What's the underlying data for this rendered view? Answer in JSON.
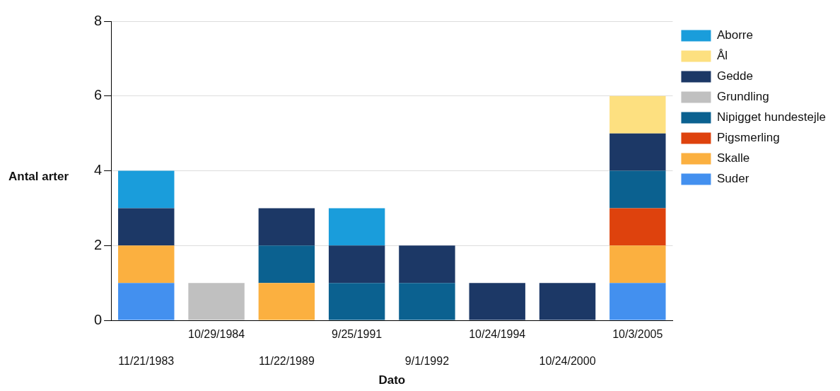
{
  "chart_data": {
    "type": "bar",
    "stacked": true,
    "xlabel": "Dato",
    "ylabel": "Antal arter",
    "categories": [
      "11/21/1983",
      "10/29/1984",
      "11/22/1989",
      "9/25/1991",
      "9/1/1992",
      "10/24/1994",
      "10/24/2000",
      "10/3/2005"
    ],
    "series": [
      {
        "name": "Suder",
        "color": "#4390ef",
        "values": [
          1,
          null,
          null,
          null,
          null,
          null,
          null,
          1
        ]
      },
      {
        "name": "Skalle",
        "color": "#fbb040",
        "values": [
          1,
          null,
          1,
          null,
          null,
          null,
          null,
          1
        ]
      },
      {
        "name": "Pigsmerling",
        "color": "#de420d",
        "values": [
          null,
          null,
          null,
          null,
          null,
          null,
          null,
          1
        ]
      },
      {
        "name": "Nipigget hundestejle",
        "color": "#0b6190",
        "values": [
          null,
          null,
          1,
          1,
          1,
          null,
          null,
          1
        ]
      },
      {
        "name": "Grundling",
        "color": "#c0c0c0",
        "values": [
          null,
          1,
          null,
          null,
          null,
          null,
          null,
          null
        ]
      },
      {
        "name": "Gedde",
        "color": "#1c3866",
        "values": [
          1,
          null,
          1,
          1,
          1,
          1,
          1,
          1
        ]
      },
      {
        "name": "Ål",
        "color": "#fde080",
        "values": [
          null,
          null,
          null,
          null,
          null,
          null,
          null,
          1
        ]
      },
      {
        "name": "Aborre",
        "color": "#1a9ddb",
        "values": [
          1,
          null,
          null,
          1,
          null,
          null,
          null,
          null
        ]
      }
    ],
    "ylim": [
      0,
      8
    ],
    "yticks": [
      0,
      2,
      4,
      6,
      8
    ],
    "grid": "y",
    "legend": "top right"
  }
}
